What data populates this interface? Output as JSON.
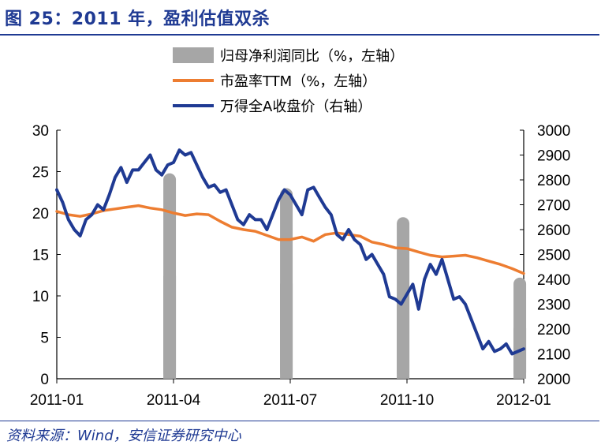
{
  "header": {
    "title": "图 25：2011 年，盈利估值双杀"
  },
  "footer": {
    "source": "资料来源：Wind，安信证券研究中心"
  },
  "colors": {
    "accent": "#1f3a93",
    "bar": "#a6a6a6",
    "pe": "#ed7d31",
    "index": "#1f3a93"
  },
  "chart_data": {
    "type": "bar+line",
    "legend": [
      {
        "name": "归母净利润同比（%，左轴）",
        "kind": "bar",
        "color": "#a6a6a6"
      },
      {
        "name": "市盈率TTM（%，左轴）",
        "kind": "line",
        "color": "#ed7d31"
      },
      {
        "name": "万得全A收盘价（右轴）",
        "kind": "line",
        "color": "#1f3a93"
      }
    ],
    "x_ticks": [
      "2011-01",
      "2011-04",
      "2011-07",
      "2011-10",
      "2012-01"
    ],
    "y_left": {
      "min": 0,
      "max": 30,
      "ticks": [
        0,
        5,
        10,
        15,
        20,
        25,
        30
      ]
    },
    "y_right": {
      "min": 2000,
      "max": 3000,
      "ticks": [
        2000,
        2100,
        2200,
        2300,
        2400,
        2500,
        2600,
        2700,
        2800,
        2900,
        3000
      ]
    },
    "x_range": [
      0,
      12
    ],
    "bars": [
      {
        "x": 2.9,
        "value": 24.8
      },
      {
        "x": 5.9,
        "value": 23.0
      },
      {
        "x": 8.9,
        "value": 19.5
      },
      {
        "x": 11.9,
        "value": 12.2
      }
    ],
    "series": [
      {
        "name": "市盈率TTM（%，左轴）",
        "axis": "left",
        "x": [
          0.0,
          0.3,
          0.6,
          0.9,
          1.2,
          1.5,
          1.8,
          2.1,
          2.4,
          2.7,
          3.0,
          3.3,
          3.6,
          3.9,
          4.2,
          4.5,
          4.8,
          5.1,
          5.4,
          5.7,
          6.0,
          6.3,
          6.6,
          6.9,
          7.2,
          7.5,
          7.8,
          8.1,
          8.4,
          8.7,
          9.0,
          9.3,
          9.6,
          9.9,
          10.2,
          10.5,
          10.8,
          11.1,
          11.4,
          11.7,
          12.0
        ],
        "values": [
          20.2,
          19.8,
          19.6,
          19.9,
          20.3,
          20.5,
          20.7,
          20.9,
          20.6,
          20.4,
          20.0,
          19.7,
          19.9,
          19.8,
          19.0,
          18.3,
          18.0,
          17.8,
          17.3,
          16.8,
          16.8,
          17.1,
          16.6,
          17.4,
          17.6,
          17.4,
          17.2,
          16.5,
          16.2,
          15.8,
          15.7,
          15.3,
          14.9,
          14.7,
          14.8,
          14.9,
          14.6,
          14.2,
          13.8,
          13.3,
          12.7
        ]
      },
      {
        "name": "万得全A收盘价（右轴）",
        "axis": "right",
        "x": [
          0.0,
          0.15,
          0.3,
          0.45,
          0.6,
          0.75,
          0.9,
          1.05,
          1.2,
          1.35,
          1.5,
          1.65,
          1.8,
          1.95,
          2.1,
          2.25,
          2.4,
          2.55,
          2.7,
          2.85,
          3.0,
          3.15,
          3.3,
          3.45,
          3.6,
          3.75,
          3.9,
          4.05,
          4.2,
          4.35,
          4.5,
          4.65,
          4.8,
          4.95,
          5.1,
          5.25,
          5.4,
          5.55,
          5.7,
          5.85,
          6.0,
          6.15,
          6.3,
          6.45,
          6.6,
          6.75,
          6.9,
          7.05,
          7.2,
          7.35,
          7.5,
          7.65,
          7.8,
          7.95,
          8.1,
          8.25,
          8.4,
          8.55,
          8.7,
          8.85,
          9.0,
          9.15,
          9.3,
          9.45,
          9.6,
          9.75,
          9.9,
          10.05,
          10.2,
          10.35,
          10.5,
          10.65,
          10.8,
          10.95,
          11.1,
          11.25,
          11.4,
          11.55,
          11.7,
          11.85,
          12.0
        ],
        "values": [
          2760,
          2710,
          2640,
          2600,
          2575,
          2640,
          2660,
          2700,
          2680,
          2740,
          2810,
          2850,
          2790,
          2840,
          2840,
          2870,
          2900,
          2840,
          2820,
          2860,
          2870,
          2920,
          2900,
          2910,
          2860,
          2810,
          2770,
          2780,
          2750,
          2760,
          2700,
          2640,
          2620,
          2660,
          2640,
          2640,
          2600,
          2660,
          2720,
          2760,
          2740,
          2700,
          2660,
          2760,
          2770,
          2730,
          2690,
          2660,
          2580,
          2560,
          2600,
          2560,
          2540,
          2480,
          2500,
          2460,
          2420,
          2330,
          2320,
          2300,
          2340,
          2380,
          2280,
          2400,
          2460,
          2420,
          2480,
          2400,
          2320,
          2330,
          2300,
          2240,
          2180,
          2120,
          2150,
          2110,
          2120,
          2140,
          2100,
          2110,
          2120
        ]
      }
    ]
  }
}
